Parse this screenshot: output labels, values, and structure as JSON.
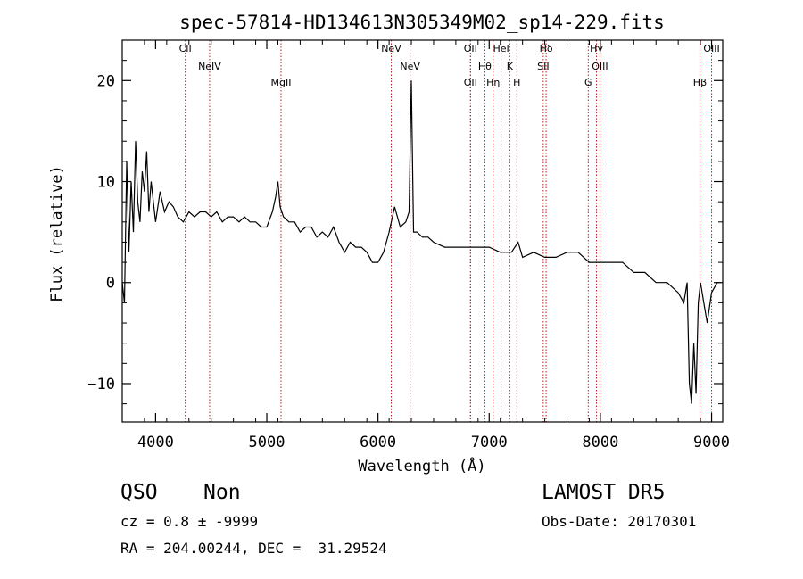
{
  "chart_data": {
    "type": "line",
    "title": "spec-57814-HD134613N305349M02_sp14-229.fits",
    "xlabel": "Wavelength (Å)",
    "ylabel": "Flux (relative)",
    "xlim": [
      3700,
      9100
    ],
    "ylim": [
      -13.8,
      24
    ],
    "x_ticks": [
      4000,
      5000,
      6000,
      7000,
      8000,
      9000
    ],
    "y_ticks": [
      -10,
      0,
      10,
      20
    ],
    "grid": false,
    "series": [
      {
        "x": [
          3700,
          3720,
          3740,
          3760,
          3780,
          3800,
          3820,
          3840,
          3860,
          3880,
          3900,
          3920,
          3940,
          3960,
          3980,
          4000,
          4040,
          4080,
          4120,
          4160,
          4200,
          4250,
          4300,
          4350,
          4400,
          4450,
          4500,
          4550,
          4600,
          4650,
          4700,
          4750,
          4800,
          4850,
          4900,
          4950,
          5000,
          5050,
          5080,
          5100,
          5120,
          5150,
          5200,
          5250,
          5300,
          5350,
          5400,
          5450,
          5500,
          5550,
          5600,
          5650,
          5700,
          5750,
          5800,
          5850,
          5900,
          5950,
          6000,
          6050,
          6100,
          6150,
          6200,
          6250,
          6280,
          6300,
          6320,
          6350,
          6400,
          6450,
          6500,
          6600,
          6700,
          6800,
          6900,
          7000,
          7100,
          7200,
          7260,
          7300,
          7400,
          7500,
          7600,
          7700,
          7800,
          7900,
          8000,
          8100,
          8200,
          8300,
          8400,
          8500,
          8600,
          8700,
          8750,
          8780,
          8800,
          8820,
          8840,
          8860,
          8880,
          8900,
          8930,
          8960,
          9000,
          9050,
          9080
        ],
        "y": [
          0,
          -2,
          12,
          3,
          10,
          5,
          14,
          8,
          6,
          11,
          9,
          13,
          7,
          10,
          8,
          6,
          9,
          7,
          8,
          7.5,
          6.5,
          6,
          7,
          6.5,
          7,
          7,
          6.5,
          7,
          6,
          6.5,
          6.5,
          6,
          6.5,
          6,
          6,
          5.5,
          5.5,
          7,
          8.5,
          10,
          7.5,
          6.5,
          6,
          6,
          5,
          5.5,
          5.5,
          4.5,
          5,
          4.5,
          5.5,
          4,
          3,
          4,
          3.5,
          3.5,
          3,
          2,
          2,
          3,
          5,
          7.5,
          5.5,
          6,
          7,
          20,
          5,
          5,
          4.5,
          4.5,
          4,
          3.5,
          3.5,
          3.5,
          3.5,
          3.5,
          3,
          3,
          4,
          2.5,
          3,
          2.5,
          2.5,
          3,
          3,
          2,
          2,
          2,
          2,
          1,
          1,
          0,
          0,
          -1,
          -2,
          0,
          -10,
          -12,
          -6,
          -11,
          -2,
          0,
          -2,
          -4,
          -1,
          0,
          0
        ]
      }
    ],
    "lines": [
      {
        "label": "CII",
        "x": 4267
      },
      {
        "label": "NeIV",
        "x": 4486
      },
      {
        "label": "MgII",
        "x": 5128
      },
      {
        "label": "NeV",
        "x": 6119
      },
      {
        "label": "NeV",
        "x": 6289
      },
      {
        "label": "OII",
        "x": 6832
      },
      {
        "label": "OII",
        "x": 6832
      },
      {
        "label": "Hθ",
        "x": 6961
      },
      {
        "label": "Hη",
        "x": 7036
      },
      {
        "label": "HeI",
        "x": 7107
      },
      {
        "label": "K",
        "x": 7185
      },
      {
        "label": "H",
        "x": 7249
      },
      {
        "label": "Hδ",
        "x": 7512
      },
      {
        "label": "SII",
        "x": 7486
      },
      {
        "label": "G",
        "x": 7891
      },
      {
        "label": "Hγ",
        "x": 7965
      },
      {
        "label": "OIII",
        "x": 7996
      },
      {
        "label": "Hβ",
        "x": 8895
      },
      {
        "label": "OIII",
        "x": 9000
      }
    ]
  },
  "info": {
    "class_label": "QSO",
    "subclass_label": "Non",
    "survey": "LAMOST DR5",
    "cz_text": "cz = 0.8 ± -9999",
    "obs_date": "Obs-Date: 20170301",
    "coords": "RA = 204.00244, DEC =  31.29524"
  }
}
